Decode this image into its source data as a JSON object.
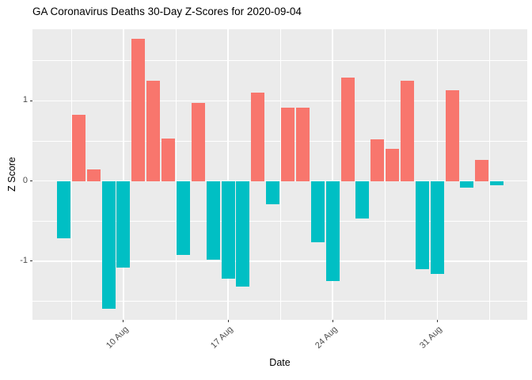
{
  "chart_data": {
    "type": "bar",
    "title": "GA Coronavirus Deaths 30-Day Z-Scores for 2020-09-04",
    "xlabel": "Date",
    "ylabel": "Z Score",
    "categories": [
      "2020-08-06",
      "2020-08-07",
      "2020-08-08",
      "2020-08-09",
      "2020-08-10",
      "2020-08-11",
      "2020-08-12",
      "2020-08-13",
      "2020-08-14",
      "2020-08-15",
      "2020-08-16",
      "2020-08-17",
      "2020-08-18",
      "2020-08-19",
      "2020-08-20",
      "2020-08-21",
      "2020-08-22",
      "2020-08-23",
      "2020-08-24",
      "2020-08-25",
      "2020-08-26",
      "2020-08-27",
      "2020-08-28",
      "2020-08-29",
      "2020-08-30",
      "2020-08-31",
      "2020-09-01",
      "2020-09-02",
      "2020-09-03",
      "2020-09-04"
    ],
    "values": [
      -0.71,
      0.82,
      0.14,
      -1.59,
      -1.08,
      1.77,
      1.25,
      0.53,
      -0.92,
      0.97,
      -0.98,
      -1.22,
      -1.32,
      1.1,
      -0.29,
      0.91,
      0.91,
      -0.76,
      -1.25,
      1.29,
      -0.47,
      0.52,
      0.4,
      1.25,
      -1.1,
      -1.16,
      1.13,
      -0.08,
      0.26,
      -0.05
    ],
    "positive_color": "#F8766D",
    "negative_color": "#00BFC4",
    "panel_bg": "#EBEBEB",
    "grid_color": "#FFFFFF",
    "tick_mark_color": "#333333",
    "tick_label_color": "#4D4D4D",
    "ylim": [
      -1.73,
      1.89
    ],
    "y_major_ticks": [
      1,
      0,
      -1
    ],
    "y_tick_labels": [
      "1",
      "0",
      "-1"
    ],
    "y_minor_ticks": [
      1.5,
      0.5,
      -0.5,
      -1.5
    ],
    "x_ticks": [
      {
        "label": "10 Aug",
        "index": 4
      },
      {
        "label": "17 Aug",
        "index": 11
      },
      {
        "label": "24 Aug",
        "index": 18
      },
      {
        "label": "31 Aug",
        "index": 25
      }
    ],
    "x_minor_tick_indices": [
      0.5,
      7.5,
      14.5,
      21.5,
      28.5
    ],
    "grid": true,
    "legend": "none"
  }
}
